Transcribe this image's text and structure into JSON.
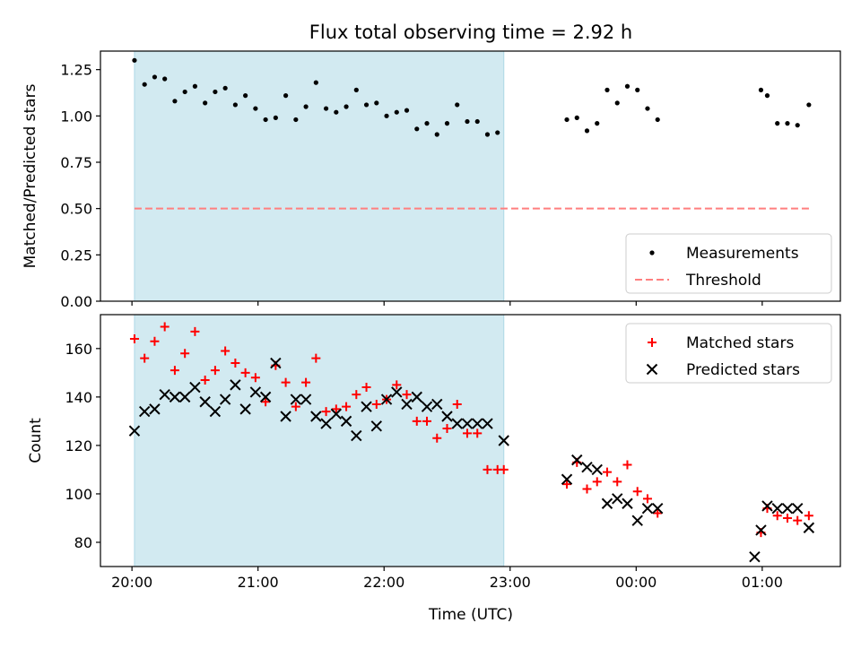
{
  "title": "Flux total observing time = 2.92 h",
  "xlabel": "Time (UTC)",
  "x_ticks": [
    {
      "t": 0.0,
      "label": "20:00"
    },
    {
      "t": 1.0,
      "label": "21:00"
    },
    {
      "t": 2.0,
      "label": "22:00"
    },
    {
      "t": 3.0,
      "label": "23:00"
    },
    {
      "t": 4.0,
      "label": "00:00"
    },
    {
      "t": 5.0,
      "label": "01:00"
    }
  ],
  "shade_range": [
    0.02,
    2.95
  ],
  "colors": {
    "shade": "#add8e6",
    "threshold": "#ff7f7f",
    "matched": "#ff0000",
    "predicted": "#000000",
    "measure": "#000000"
  },
  "chart_data": [
    {
      "type": "scatter",
      "ylabel": "Matched/Predicted stars",
      "xlim_hours": [
        -0.25,
        5.62
      ],
      "ylim": [
        0,
        1.35
      ],
      "y_ticks": [
        "0.00",
        "0.25",
        "0.50",
        "0.75",
        "1.00",
        "1.25"
      ],
      "legend": {
        "position": "lower-right",
        "entries": [
          "Measurements",
          "Threshold"
        ]
      },
      "threshold": {
        "y": 0.5,
        "x_range": [
          0.02,
          5.38
        ],
        "label": "Threshold"
      },
      "series": [
        {
          "name": "Measurements",
          "x": [
            0.02,
            0.1,
            0.18,
            0.26,
            0.34,
            0.42,
            0.5,
            0.58,
            0.66,
            0.74,
            0.82,
            0.9,
            0.98,
            1.06,
            1.14,
            1.22,
            1.3,
            1.38,
            1.46,
            1.54,
            1.62,
            1.7,
            1.78,
            1.86,
            1.94,
            2.02,
            2.1,
            2.18,
            2.26,
            2.34,
            2.42,
            2.5,
            2.58,
            2.66,
            2.74,
            2.82,
            2.9,
            3.45,
            3.53,
            3.61,
            3.69,
            3.77,
            3.85,
            3.93,
            4.01,
            4.09,
            4.17,
            4.99,
            5.04,
            5.12,
            5.2,
            5.28,
            5.37
          ],
          "y": [
            1.3,
            1.17,
            1.21,
            1.2,
            1.08,
            1.13,
            1.16,
            1.07,
            1.13,
            1.15,
            1.06,
            1.11,
            1.04,
            0.98,
            0.99,
            1.11,
            0.98,
            1.05,
            1.18,
            1.04,
            1.02,
            1.05,
            1.14,
            1.06,
            1.07,
            1.0,
            1.02,
            1.03,
            0.93,
            0.96,
            0.9,
            0.96,
            1.06,
            0.97,
            0.97,
            0.9,
            0.91,
            0.98,
            0.99,
            0.92,
            0.96,
            1.14,
            1.07,
            1.16,
            1.14,
            1.04,
            0.98,
            1.14,
            1.11,
            0.96,
            0.96,
            0.95,
            1.06
          ]
        }
      ]
    },
    {
      "type": "scatter",
      "ylabel": "Count",
      "xlim_hours": [
        -0.25,
        5.62
      ],
      "ylim": [
        70,
        174
      ],
      "y_ticks": [
        "80",
        "100",
        "120",
        "140",
        "160"
      ],
      "legend": {
        "position": "upper-right",
        "entries": [
          "Matched stars",
          "Predicted stars"
        ]
      },
      "series": [
        {
          "name": "Matched stars",
          "marker": "plus",
          "x": [
            0.02,
            0.1,
            0.18,
            0.26,
            0.34,
            0.42,
            0.5,
            0.58,
            0.66,
            0.74,
            0.82,
            0.9,
            0.98,
            1.06,
            1.14,
            1.22,
            1.3,
            1.38,
            1.46,
            1.54,
            1.62,
            1.7,
            1.78,
            1.86,
            1.94,
            2.02,
            2.1,
            2.18,
            2.26,
            2.34,
            2.42,
            2.5,
            2.58,
            2.66,
            2.74,
            2.82,
            2.9,
            2.95,
            3.45,
            3.53,
            3.61,
            3.69,
            3.77,
            3.85,
            3.93,
            4.01,
            4.09,
            4.17,
            4.99,
            5.04,
            5.12,
            5.2,
            5.28,
            5.37
          ],
          "y": [
            164,
            156,
            163,
            169,
            151,
            158,
            167,
            147,
            151,
            159,
            154,
            150,
            148,
            138,
            153,
            146,
            136,
            146,
            156,
            134,
            135,
            136,
            141,
            144,
            137,
            139,
            145,
            141,
            130,
            130,
            123,
            127,
            137,
            125,
            125,
            110,
            110,
            110,
            104,
            113,
            102,
            105,
            109,
            105,
            112,
            101,
            98,
            92,
            84,
            94,
            91,
            90,
            89,
            91
          ]
        },
        {
          "name": "Predicted stars",
          "marker": "x",
          "x": [
            0.02,
            0.1,
            0.18,
            0.26,
            0.34,
            0.42,
            0.5,
            0.58,
            0.66,
            0.74,
            0.82,
            0.9,
            0.98,
            1.06,
            1.14,
            1.22,
            1.3,
            1.38,
            1.46,
            1.54,
            1.62,
            1.7,
            1.78,
            1.86,
            1.94,
            2.02,
            2.1,
            2.18,
            2.26,
            2.34,
            2.42,
            2.5,
            2.58,
            2.66,
            2.74,
            2.82,
            2.95,
            3.45,
            3.53,
            3.61,
            3.69,
            3.77,
            3.85,
            3.93,
            4.01,
            4.09,
            4.17,
            4.94,
            4.99,
            5.04,
            5.12,
            5.2,
            5.28,
            5.37
          ],
          "y": [
            126,
            134,
            135,
            141,
            140,
            140,
            144,
            138,
            134,
            139,
            145,
            135,
            142,
            140,
            154,
            132,
            139,
            139,
            132,
            129,
            133,
            130,
            124,
            136,
            128,
            139,
            142,
            137,
            140,
            136,
            137,
            132,
            129,
            129,
            129,
            129,
            122,
            106,
            114,
            111,
            110,
            96,
            98,
            96,
            89,
            94,
            94,
            74,
            85,
            95,
            94,
            94,
            94,
            86
          ]
        }
      ]
    }
  ]
}
